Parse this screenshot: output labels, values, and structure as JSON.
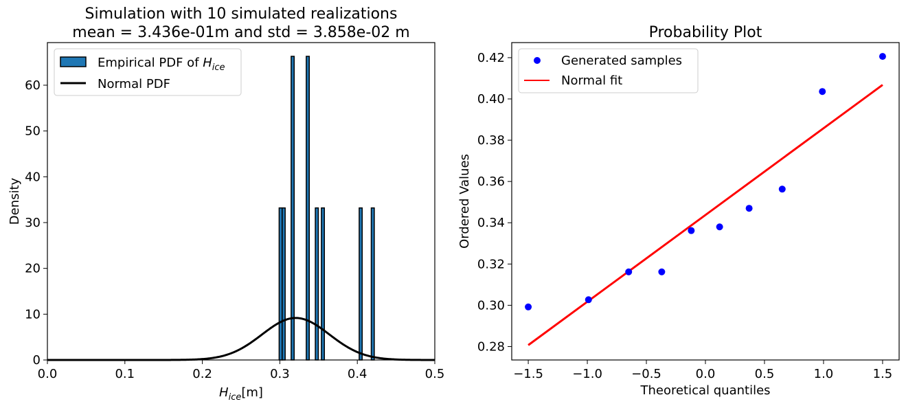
{
  "colors": {
    "bar": "#1f77b4",
    "pdf": "#000000",
    "points": "#0000ff",
    "fit": "#ff0000"
  },
  "chart_data": [
    {
      "type": "bar",
      "subtype": "histogram",
      "title_line1": "Simulation with 10 simulated realizations",
      "title_line2": "mean = 3.436e-01m and std = 3.858e-02 m",
      "xlabel": "H",
      "xlabel_sub": "ice",
      "xlabel_suffix": "[m]",
      "ylabel": "Density",
      "xlim": [
        0,
        0.5
      ],
      "ylim": [
        0,
        69.3
      ],
      "xticks": [
        0.0,
        0.1,
        0.2,
        0.3,
        0.4,
        0.5
      ],
      "xtick_labels": [
        "0.0",
        "0.1",
        "0.2",
        "0.3",
        "0.4",
        "0.5"
      ],
      "yticks": [
        0,
        10,
        20,
        30,
        40,
        50,
        60
      ],
      "ytick_labels": [
        "0",
        "10",
        "20",
        "30",
        "40",
        "50",
        "60"
      ],
      "legend_position": "upper-left",
      "legend": {
        "hist_label": "Empirical PDF of ",
        "hist_label_math": "H",
        "hist_label_sub": "ice",
        "pdf_label": "Normal PDF"
      },
      "bars": [
        {
          "x0": 0.2991,
          "x1": 0.303,
          "density": 33.2
        },
        {
          "x0": 0.303,
          "x1": 0.3069,
          "density": 33.2
        },
        {
          "x0": 0.3146,
          "x1": 0.3185,
          "density": 66.3
        },
        {
          "x0": 0.3341,
          "x1": 0.338,
          "density": 66.3
        },
        {
          "x0": 0.3458,
          "x1": 0.3497,
          "density": 33.2
        },
        {
          "x0": 0.3536,
          "x1": 0.3575,
          "density": 33.2
        },
        {
          "x0": 0.4024,
          "x1": 0.4063,
          "density": 33.2
        },
        {
          "x0": 0.418,
          "x1": 0.4219,
          "density": 33.2
        }
      ],
      "normal_pdf": {
        "mean": 0.3205,
        "std": 0.0435
      }
    },
    {
      "type": "scatter",
      "title": "Probability Plot",
      "xlabel": "Theoretical quantiles",
      "ylabel": "Ordered Values",
      "xlim": [
        -1.64,
        1.64
      ],
      "ylim": [
        0.2735,
        0.4273
      ],
      "xticks": [
        -1.5,
        -1.0,
        -0.5,
        0.0,
        0.5,
        1.0,
        1.5
      ],
      "xtick_labels": [
        "−1.5",
        "−1.0",
        "−0.5",
        "0.0",
        "0.5",
        "1.0",
        "1.5"
      ],
      "yticks": [
        0.28,
        0.3,
        0.32,
        0.34,
        0.36,
        0.38,
        0.4,
        0.42
      ],
      "ytick_labels": [
        "0.28",
        "0.30",
        "0.32",
        "0.34",
        "0.36",
        "0.38",
        "0.40",
        "0.42"
      ],
      "legend_position": "upper-left",
      "series": [
        {
          "name": "Generated samples",
          "x": [
            -1.5,
            -0.99,
            -0.65,
            -0.37,
            -0.12,
            0.12,
            0.37,
            0.65,
            0.99,
            1.5
          ],
          "y": [
            0.2992,
            0.3027,
            0.3162,
            0.3162,
            0.3362,
            0.338,
            0.347,
            0.3563,
            0.4036,
            0.4206
          ]
        },
        {
          "name": "Normal fit",
          "line": {
            "x": [
              -1.5,
              1.5
            ],
            "y": [
              0.2807,
              0.4068
            ]
          }
        }
      ]
    }
  ]
}
